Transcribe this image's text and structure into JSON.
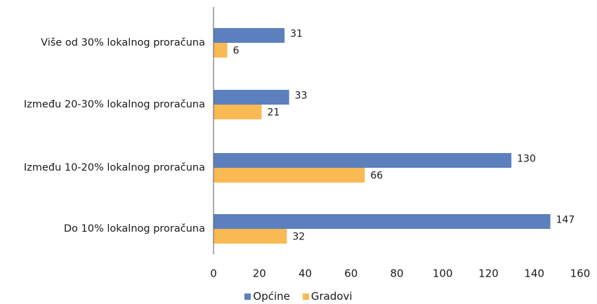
{
  "chart_data": {
    "type": "bar",
    "orientation": "horizontal",
    "categories": [
      "Do 10% lokalnog proračuna",
      "Između 10-20% lokalnog proračuna",
      "Između 20-30% lokalnog proračuna",
      "Više od 30% lokalnog proračuna"
    ],
    "series": [
      {
        "name": "Općine",
        "values": [
          147,
          130,
          33,
          31
        ],
        "color": "#5B80BD"
      },
      {
        "name": "Gradovi",
        "values": [
          32,
          66,
          21,
          6
        ],
        "color": "#F9B953"
      }
    ],
    "xlim": [
      0,
      160
    ],
    "xticks": [
      "0",
      "20",
      "40",
      "60",
      "80",
      "100",
      "120",
      "140",
      "160"
    ],
    "grid": false,
    "legend_position": "bottom"
  }
}
